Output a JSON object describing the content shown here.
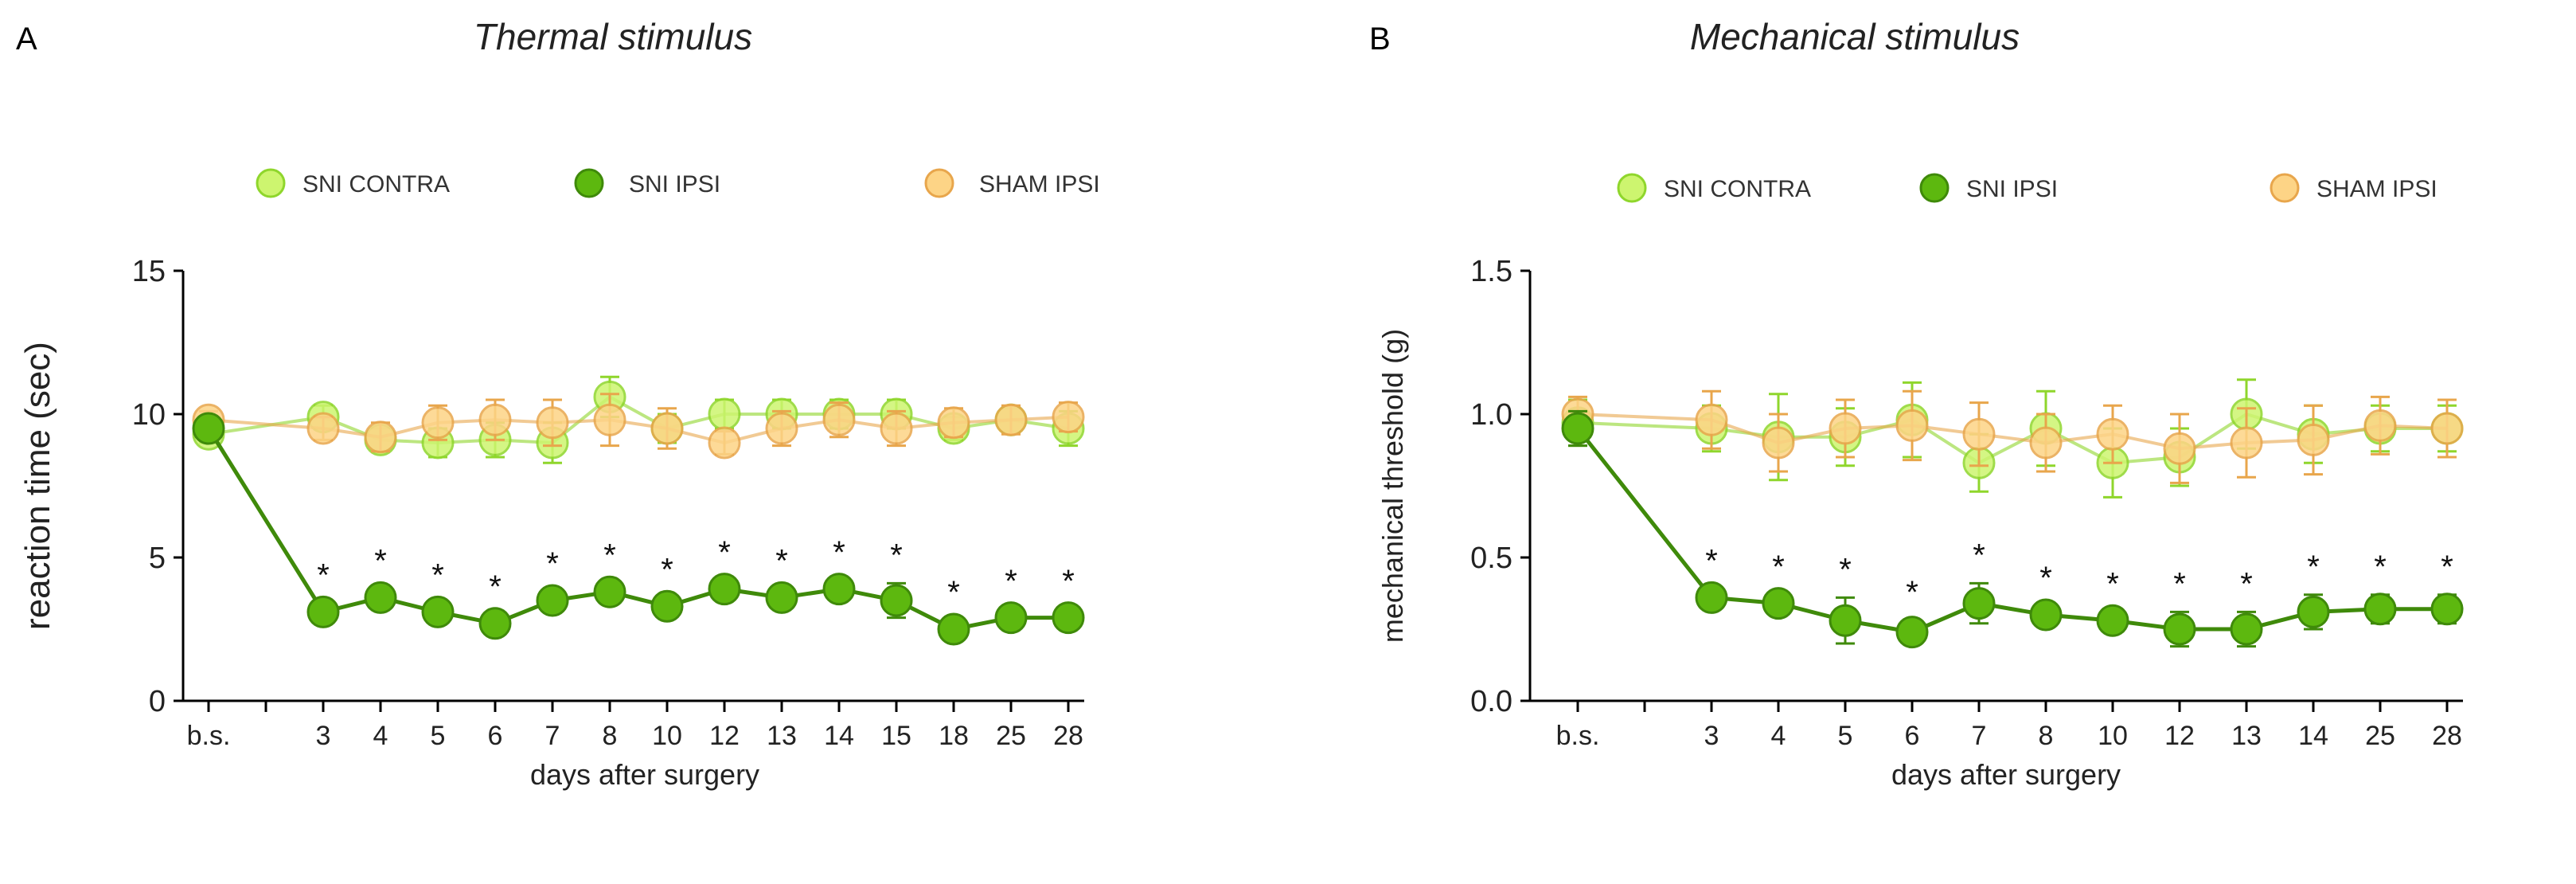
{
  "colors": {
    "contra_fill": "#cdf56f",
    "contra_stroke": "#8fd62c",
    "ipsi_fill": "#5db80f",
    "ipsi_stroke": "#3f8a0a",
    "sham_fill": "#fdd486",
    "sham_stroke": "#e8a64c"
  },
  "chart_data": [
    {
      "type": "line",
      "panel_label": "A",
      "title": "Thermal stimulus",
      "xlabel": "days after surgery",
      "ylabel": "reaction time (sec)",
      "categories": [
        "b.s.",
        "",
        "3",
        "4",
        "5",
        "6",
        "7",
        "8",
        "10",
        "12",
        "13",
        "14",
        "15",
        "18",
        "25",
        "28"
      ],
      "ylim": [
        0,
        15
      ],
      "yticks": [
        "0",
        "5",
        "10",
        "15"
      ],
      "ytick_values": [
        0,
        5,
        10,
        15
      ],
      "legend": "top",
      "series": [
        {
          "name": "SNI CONTRA",
          "key": "contra",
          "values": [
            9.3,
            null,
            9.9,
            9.1,
            9.0,
            9.1,
            9.0,
            10.6,
            9.5,
            10.0,
            10.0,
            10.0,
            10.0,
            9.5,
            9.8,
            9.5
          ],
          "err": [
            0.3,
            null,
            0.4,
            0.4,
            0.5,
            0.6,
            0.7,
            0.7,
            0.5,
            0.5,
            0.5,
            0.5,
            0.5,
            0.4,
            0.4,
            0.6
          ]
        },
        {
          "name": "SNI IPSI",
          "key": "ipsi",
          "values": [
            9.5,
            null,
            3.1,
            3.6,
            3.1,
            2.7,
            3.5,
            3.8,
            3.3,
            3.9,
            3.6,
            3.9,
            3.5,
            2.5,
            2.9,
            2.9
          ],
          "err": [
            0.3,
            null,
            0.3,
            0.3,
            0.3,
            0.3,
            0.3,
            0.3,
            0.3,
            0.3,
            0.3,
            0.3,
            0.6,
            0.3,
            0.3,
            0.3
          ],
          "significant": [
            false,
            null,
            true,
            true,
            true,
            true,
            true,
            true,
            true,
            true,
            true,
            true,
            true,
            true,
            true,
            true
          ]
        },
        {
          "name": "SHAM IPSI",
          "key": "sham",
          "values": [
            9.8,
            null,
            9.5,
            9.2,
            9.7,
            9.8,
            9.7,
            9.8,
            9.5,
            9.0,
            9.5,
            9.8,
            9.5,
            9.7,
            9.8,
            9.9
          ],
          "err": [
            0.3,
            null,
            0.4,
            0.5,
            0.6,
            0.7,
            0.8,
            0.9,
            0.7,
            0.4,
            0.6,
            0.6,
            0.6,
            0.5,
            0.5,
            0.5
          ]
        }
      ],
      "star_label": "*"
    },
    {
      "type": "line",
      "panel_label": "B",
      "title": "Mechanical stimulus",
      "xlabel": "days after surgery",
      "ylabel": "mechanical threshold (g)",
      "categories": [
        "b.s.",
        "",
        "3",
        "4",
        "5",
        "6",
        "7",
        "8",
        "10",
        "12",
        "13",
        "14",
        "25",
        "28"
      ],
      "ylim": [
        0,
        1.5
      ],
      "yticks": [
        "0.0",
        "0.5",
        "1.0",
        "1.5"
      ],
      "ytick_values": [
        0,
        0.5,
        1.0,
        1.5
      ],
      "legend": "top",
      "series": [
        {
          "name": "SNI CONTRA",
          "key": "contra",
          "values": [
            0.97,
            null,
            0.95,
            0.92,
            0.92,
            0.98,
            0.83,
            0.95,
            0.83,
            0.85,
            1.0,
            0.93,
            0.95,
            0.95
          ],
          "err": [
            0.08,
            null,
            0.08,
            0.15,
            0.1,
            0.13,
            0.1,
            0.13,
            0.12,
            0.1,
            0.12,
            0.1,
            0.08,
            0.08
          ]
        },
        {
          "name": "SNI IPSI",
          "key": "ipsi",
          "values": [
            0.95,
            null,
            0.36,
            0.34,
            0.28,
            0.24,
            0.34,
            0.3,
            0.28,
            0.25,
            0.25,
            0.31,
            0.32,
            0.32
          ],
          "err": [
            0.06,
            null,
            0.03,
            0.03,
            0.08,
            0.04,
            0.07,
            0.03,
            0.03,
            0.06,
            0.06,
            0.06,
            0.05,
            0.05
          ],
          "significant": [
            false,
            null,
            true,
            true,
            true,
            true,
            true,
            true,
            true,
            true,
            true,
            true,
            true,
            true
          ]
        },
        {
          "name": "SHAM IPSI",
          "key": "sham",
          "values": [
            1.0,
            null,
            0.98,
            0.9,
            0.95,
            0.96,
            0.93,
            0.9,
            0.93,
            0.88,
            0.9,
            0.91,
            0.96,
            0.95
          ],
          "err": [
            0.06,
            null,
            0.1,
            0.1,
            0.1,
            0.12,
            0.11,
            0.1,
            0.1,
            0.12,
            0.12,
            0.12,
            0.1,
            0.1
          ]
        }
      ],
      "star_label": "*"
    }
  ]
}
